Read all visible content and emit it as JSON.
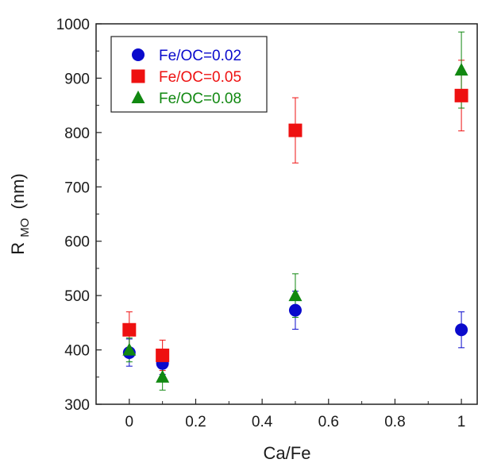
{
  "chart_data": {
    "type": "scatter",
    "xlabel": "Ca/Fe",
    "ylabel_main": "R",
    "ylabel_sub": "MO",
    "ylabel_unit": "(nm)",
    "xlim": [
      -0.1,
      1.05
    ],
    "ylim": [
      300,
      1000
    ],
    "x_ticks": [
      0,
      0.2,
      0.4,
      0.6,
      0.8,
      1
    ],
    "x_tick_labels": [
      "0",
      "0.2",
      "0.4",
      "0.6",
      "0.8",
      "1"
    ],
    "y_ticks": [
      300,
      400,
      500,
      600,
      700,
      800,
      900,
      1000
    ],
    "y_tick_labels": [
      "300",
      "400",
      "500",
      "600",
      "700",
      "800",
      "900",
      "1000"
    ],
    "legend_position": "top-left",
    "grid": false,
    "series": [
      {
        "name": "Fe/OC=0.02",
        "marker": "circle",
        "color": "#0a0acc",
        "x": [
          0,
          0.1,
          0.5,
          1
        ],
        "y": [
          395,
          375,
          473,
          437
        ],
        "err": [
          25,
          20,
          35,
          33
        ]
      },
      {
        "name": "Fe/OC=0.05",
        "marker": "square",
        "color": "#ee1111",
        "x": [
          0,
          0.1,
          0.5,
          1
        ],
        "y": [
          437,
          390,
          804,
          868
        ],
        "err": [
          33,
          28,
          60,
          65
        ]
      },
      {
        "name": "Fe/OC=0.08",
        "marker": "triangle",
        "color": "#118811",
        "x": [
          0,
          0.1,
          0.5,
          1
        ],
        "y": [
          400,
          350,
          500,
          915
        ],
        "err": [
          22,
          24,
          40,
          70
        ]
      }
    ]
  }
}
